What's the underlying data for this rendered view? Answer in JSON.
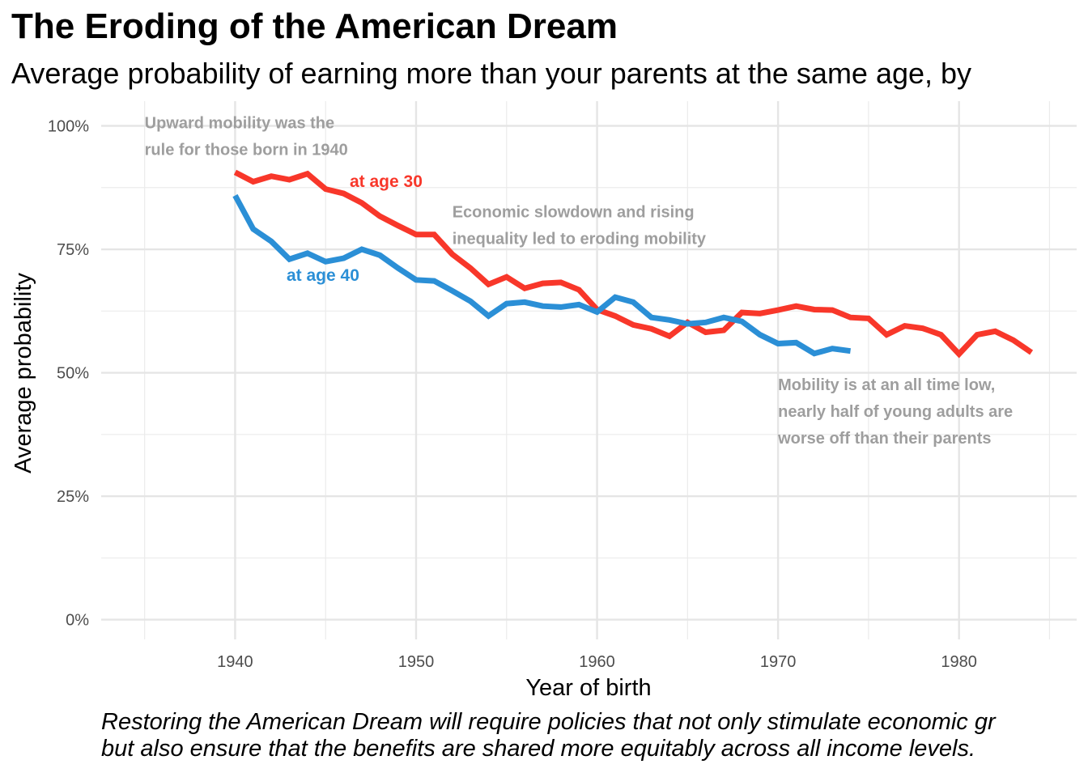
{
  "title": "The Eroding of the American Dream",
  "subtitle": "Average probability of earning more than your parents at the same age, by",
  "caption_lines": [
    "Restoring the American Dream will require policies that not only stimulate economic gr",
    "but also ensure that the benefits are shared more equitably across all income levels."
  ],
  "chart_data": {
    "type": "line",
    "xlabel": "Year of birth",
    "ylabel": "Average probability",
    "xlim": [
      1932.6,
      1986.5
    ],
    "ylim": [
      -4,
      105
    ],
    "x_ticks": [
      1940,
      1950,
      1960,
      1970,
      1980
    ],
    "y_ticks": [
      0,
      25,
      50,
      75,
      100
    ],
    "y_tick_labels": [
      "0%",
      "25%",
      "50%",
      "75%",
      "100%"
    ],
    "grid": true,
    "series": [
      {
        "name": "at age 30",
        "color": "#f8372a",
        "x_start": 1940,
        "values": [
          90.6,
          88.7,
          89.8,
          89.1,
          90.3,
          87.2,
          86.3,
          84.4,
          81.7,
          79.8,
          78.0,
          78.0,
          74.0,
          71.2,
          67.9,
          69.4,
          67.1,
          68.1,
          68.3,
          66.8,
          62.8,
          61.5,
          59.7,
          58.9,
          57.4,
          60.2,
          58.2,
          58.6,
          62.2,
          62.0,
          62.7,
          63.5,
          62.8,
          62.7,
          61.2,
          61.0,
          57.7,
          59.5,
          59.0,
          57.7,
          53.8,
          57.7,
          58.4,
          56.6,
          54.1
        ]
      },
      {
        "name": "at age 40",
        "color": "#2b8fd6",
        "x_start": 1940,
        "values": [
          85.9,
          79.1,
          76.6,
          73.0,
          74.2,
          72.5,
          73.2,
          75.0,
          73.8,
          71.2,
          68.8,
          68.6,
          66.6,
          64.5,
          61.5,
          64.0,
          64.3,
          63.5,
          63.3,
          63.8,
          62.3,
          65.3,
          64.3,
          61.2,
          60.7,
          59.9,
          60.2,
          61.2,
          60.4,
          57.7,
          55.9,
          56.1,
          53.9,
          54.9,
          54.4
        ]
      }
    ],
    "annotations": [
      {
        "lines": [
          "Upward mobility was the",
          "rule for those born in 1940"
        ],
        "x": 1935,
        "y": 100
      },
      {
        "lines": [
          "Economic slowdown and rising",
          "inequality led to eroding mobility"
        ],
        "x": 1952,
        "y": 82
      },
      {
        "lines": [
          "Mobility is at an all time low,",
          "nearly half of young adults are",
          "worse off than their parents"
        ],
        "x": 1970,
        "y": 47
      }
    ]
  }
}
